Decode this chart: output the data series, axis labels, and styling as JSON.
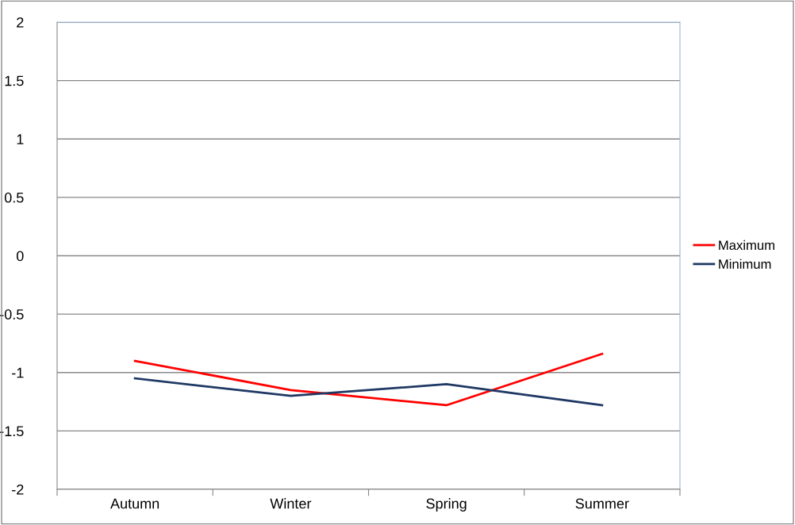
{
  "chart_data": {
    "type": "line",
    "categories": [
      "Autumn",
      "Winter",
      "Spring",
      "Summer"
    ],
    "series": [
      {
        "name": "Maximum",
        "color": "#ff0000",
        "values": [
          -0.9,
          -1.15,
          -1.28,
          -0.84
        ]
      },
      {
        "name": "Minimum",
        "color": "#1f3864",
        "values": [
          -1.05,
          -1.2,
          -1.1,
          -1.28
        ]
      }
    ],
    "ylim": [
      -2,
      2
    ],
    "yticks": [
      -2,
      -1.5,
      -1,
      -0.5,
      0,
      0.5,
      1,
      1.5,
      2
    ],
    "grid": "y",
    "legend": "right",
    "marker": "none",
    "line_style": "solid"
  }
}
